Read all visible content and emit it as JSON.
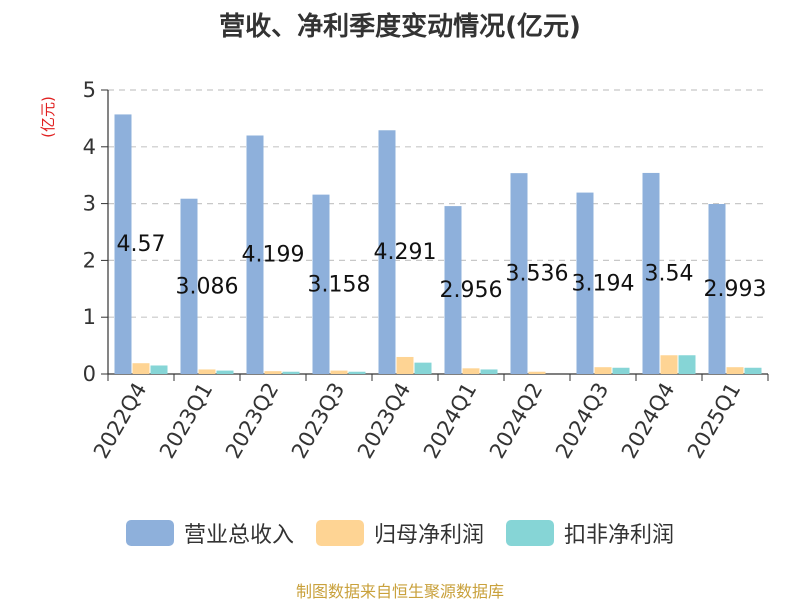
{
  "chart_data": {
    "type": "bar",
    "title": "营收、净利季度变动情况(亿元)",
    "unit_label": "(亿元)",
    "categories": [
      "2022Q4",
      "2023Q1",
      "2023Q2",
      "2023Q3",
      "2023Q4",
      "2024Q1",
      "2024Q2",
      "2024Q3",
      "2024Q4",
      "2025Q1"
    ],
    "series": [
      {
        "name": "营业总收入",
        "color": "#8eb0db",
        "values": [
          4.57,
          3.086,
          4.199,
          3.158,
          4.291,
          2.956,
          3.536,
          3.194,
          3.54,
          2.993
        ],
        "labels": [
          "4.57",
          "3.086",
          "4.199",
          "3.158",
          "4.291",
          "2.956",
          "3.536",
          "3.194",
          "3.54",
          "2.993"
        ]
      },
      {
        "name": "归母净利润",
        "color": "#fed494",
        "values": [
          0.19,
          0.08,
          0.05,
          0.06,
          0.3,
          0.1,
          0.04,
          0.12,
          0.33,
          0.12
        ]
      },
      {
        "name": "扣非净利润",
        "color": "#86d5d6",
        "values": [
          0.15,
          0.06,
          0.04,
          0.04,
          0.2,
          0.08,
          0.0,
          0.11,
          0.33,
          0.11
        ]
      }
    ],
    "ylim": [
      0,
      5
    ],
    "yticks": [
      0,
      1,
      2,
      3,
      4,
      5
    ],
    "grid": true,
    "legend": "bottom"
  },
  "source": "制图数据来自恒生聚源数据库"
}
